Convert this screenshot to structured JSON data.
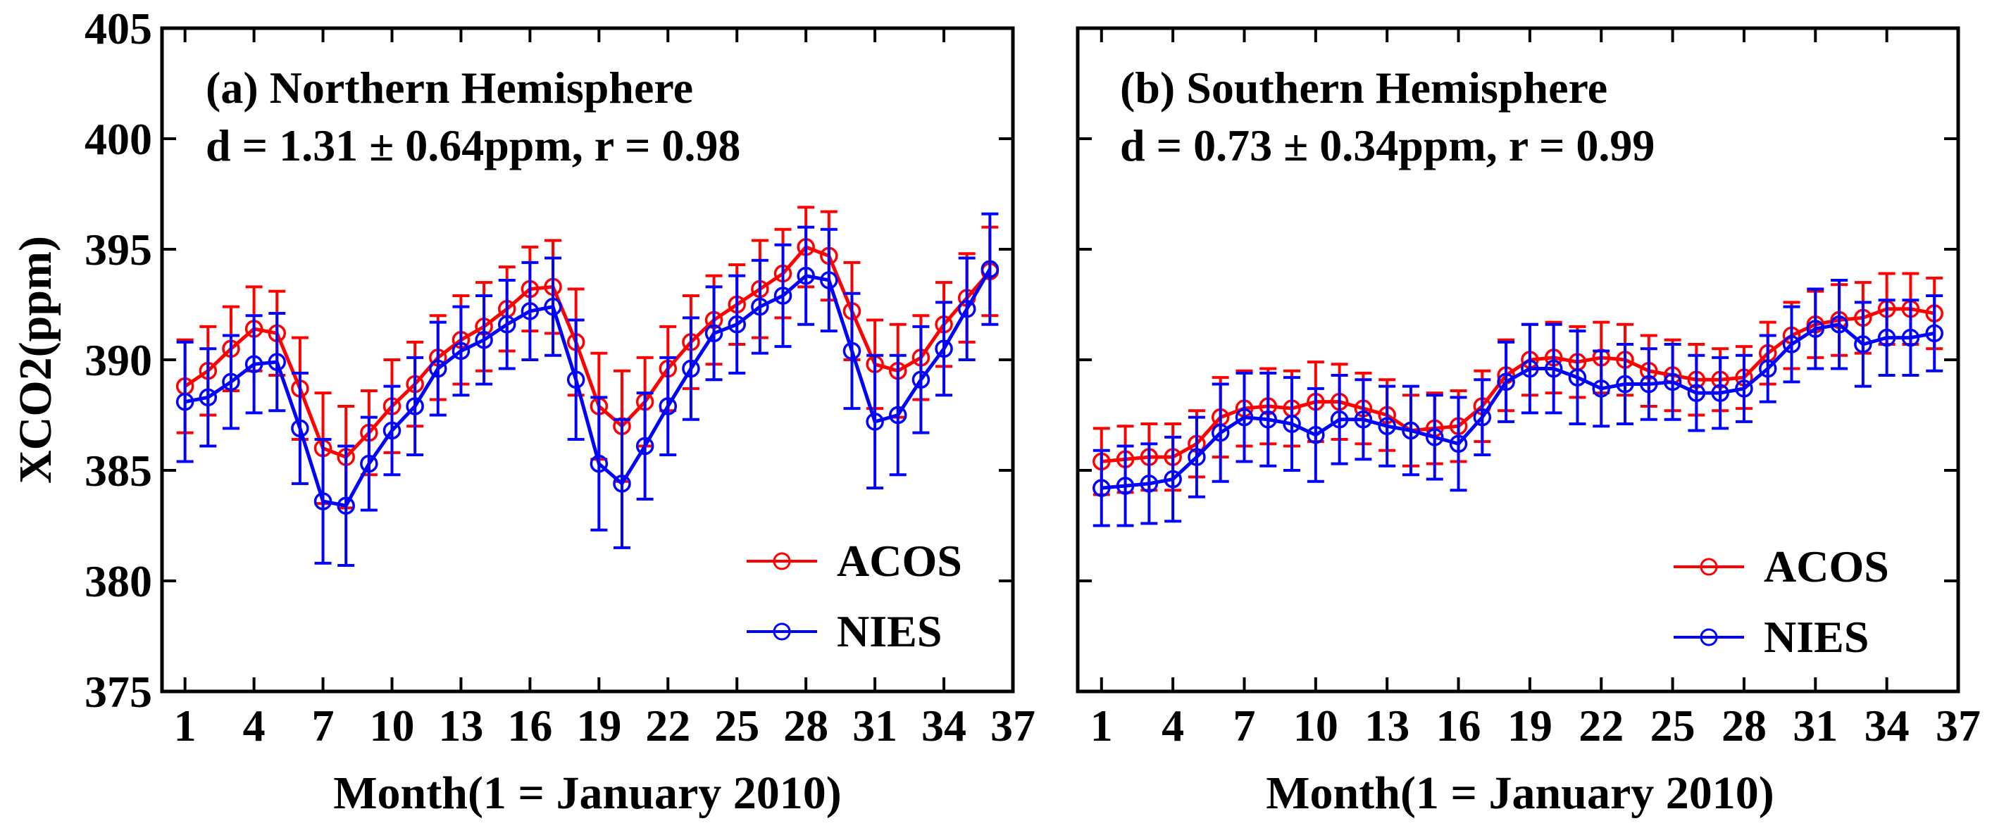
{
  "chart_data": [
    {
      "type": "line",
      "title": "(a) Northern Hemisphere",
      "stats_text": "d = 1.31 ± 0.64ppm, r = 0.98",
      "xlabel": "Month(1 = January 2010)",
      "ylabel": "XCO2(ppm)",
      "xlim": [
        0,
        37
      ],
      "ylim": [
        375,
        405
      ],
      "xticks": [
        1,
        4,
        7,
        10,
        13,
        16,
        19,
        22,
        25,
        28,
        31,
        34,
        37
      ],
      "yticks": [
        375,
        380,
        385,
        390,
        395,
        400,
        405
      ],
      "ytick_labels": [
        "375",
        "380",
        "385",
        "390",
        "395",
        "400",
        "405"
      ],
      "grid": false,
      "legend_position": "bottom-right",
      "x": [
        1,
        2,
        3,
        4,
        5,
        6,
        7,
        8,
        9,
        10,
        11,
        12,
        13,
        14,
        15,
        16,
        17,
        18,
        19,
        20,
        21,
        22,
        23,
        24,
        25,
        26,
        27,
        28,
        29,
        30,
        31,
        32,
        33,
        34,
        35,
        36
      ],
      "series": [
        {
          "name": "ACOS",
          "color": "#ff0000",
          "values": [
            388.8,
            389.5,
            390.5,
            391.4,
            391.2,
            388.7,
            386.0,
            385.6,
            386.7,
            387.9,
            388.9,
            390.1,
            390.9,
            391.5,
            392.3,
            393.2,
            393.3,
            390.8,
            387.9,
            387.0,
            388.1,
            389.6,
            390.8,
            391.8,
            392.5,
            393.2,
            393.9,
            395.1,
            394.7,
            392.2,
            389.8,
            389.5,
            390.1,
            391.6,
            392.8,
            394.0
          ],
          "errors": [
            2.1,
            2.0,
            1.9,
            1.9,
            1.9,
            2.3,
            2.5,
            2.3,
            1.9,
            2.1,
            1.9,
            1.9,
            2.0,
            2.0,
            1.9,
            1.9,
            2.1,
            2.4,
            2.4,
            2.5,
            2.0,
            1.9,
            2.1,
            2.0,
            1.8,
            2.2,
            2.0,
            1.8,
            2.0,
            2.2,
            2.0,
            2.1,
            1.9,
            1.9,
            2.0,
            2.0
          ]
        },
        {
          "name": "NIES",
          "color": "#0000ff",
          "values": [
            388.1,
            388.3,
            389.0,
            389.8,
            389.9,
            386.9,
            383.6,
            383.4,
            385.3,
            386.8,
            387.9,
            389.6,
            390.4,
            390.9,
            391.6,
            392.2,
            392.4,
            389.1,
            385.3,
            384.4,
            386.1,
            387.9,
            389.6,
            391.2,
            391.6,
            392.4,
            392.9,
            393.8,
            393.6,
            390.4,
            387.2,
            387.5,
            389.1,
            390.5,
            392.3,
            394.1
          ],
          "errors": [
            2.7,
            2.2,
            2.1,
            2.2,
            2.2,
            2.5,
            2.8,
            2.7,
            2.1,
            2.0,
            2.2,
            2.1,
            2.0,
            2.0,
            2.0,
            2.2,
            2.2,
            2.7,
            3.0,
            2.9,
            2.4,
            2.2,
            2.3,
            2.1,
            2.2,
            2.1,
            2.3,
            2.2,
            2.3,
            2.6,
            3.0,
            2.7,
            2.4,
            2.1,
            2.3,
            2.5
          ]
        }
      ]
    },
    {
      "type": "line",
      "title": "(b) Southern Hemisphere",
      "stats_text": "d = 0.73 ± 0.34ppm, r = 0.99",
      "xlabel": "Month(1 = January 2010)",
      "ylabel": "",
      "xlim": [
        0,
        37
      ],
      "ylim": [
        375,
        405
      ],
      "xticks": [
        1,
        4,
        7,
        10,
        13,
        16,
        19,
        22,
        25,
        28,
        31,
        34,
        37
      ],
      "yticks": [
        375,
        380,
        385,
        390,
        395,
        400,
        405
      ],
      "ytick_labels": [],
      "grid": false,
      "legend_position": "bottom-right",
      "x": [
        1,
        2,
        3,
        4,
        5,
        6,
        7,
        8,
        9,
        10,
        11,
        12,
        13,
        14,
        15,
        16,
        17,
        18,
        19,
        20,
        21,
        22,
        23,
        24,
        25,
        26,
        27,
        28,
        29,
        30,
        31,
        32,
        33,
        34,
        35,
        36
      ],
      "series": [
        {
          "name": "ACOS",
          "color": "#ff0000",
          "values": [
            385.4,
            385.5,
            385.6,
            385.6,
            386.2,
            387.4,
            387.8,
            387.9,
            387.8,
            388.1,
            388.1,
            387.8,
            387.5,
            386.8,
            386.9,
            387.0,
            387.9,
            389.3,
            390.0,
            390.1,
            389.9,
            390.1,
            390.0,
            389.5,
            389.3,
            389.1,
            389.1,
            389.2,
            390.3,
            391.1,
            391.6,
            391.8,
            391.9,
            392.3,
            392.3,
            392.1
          ],
          "errors": [
            1.5,
            1.5,
            1.5,
            1.5,
            1.5,
            1.8,
            1.7,
            1.7,
            1.7,
            1.8,
            1.7,
            1.6,
            1.6,
            1.6,
            1.6,
            1.6,
            1.6,
            1.6,
            1.6,
            1.6,
            1.6,
            1.6,
            1.6,
            1.6,
            1.6,
            1.6,
            1.4,
            1.4,
            1.4,
            1.5,
            1.5,
            1.6,
            1.6,
            1.6,
            1.6,
            1.6
          ]
        },
        {
          "name": "NIES",
          "color": "#0000ff",
          "values": [
            384.2,
            384.3,
            384.4,
            384.6,
            385.6,
            386.7,
            387.4,
            387.3,
            387.1,
            386.6,
            387.3,
            387.3,
            387.0,
            386.8,
            386.5,
            386.2,
            387.4,
            389.0,
            389.6,
            389.6,
            389.2,
            388.7,
            388.9,
            388.9,
            389.0,
            388.5,
            388.5,
            388.7,
            389.6,
            390.7,
            391.4,
            391.6,
            390.7,
            391.0,
            391.0,
            391.2
          ],
          "errors": [
            1.7,
            1.8,
            1.8,
            1.9,
            1.8,
            2.2,
            2.0,
            2.1,
            2.1,
            2.1,
            2.0,
            1.8,
            1.8,
            2.0,
            1.9,
            2.1,
            1.7,
            1.8,
            2.0,
            2.0,
            2.1,
            1.7,
            1.8,
            1.6,
            1.7,
            1.7,
            1.6,
            1.5,
            1.5,
            1.7,
            1.8,
            2.0,
            1.9,
            1.7,
            1.7,
            1.7
          ]
        }
      ]
    }
  ]
}
